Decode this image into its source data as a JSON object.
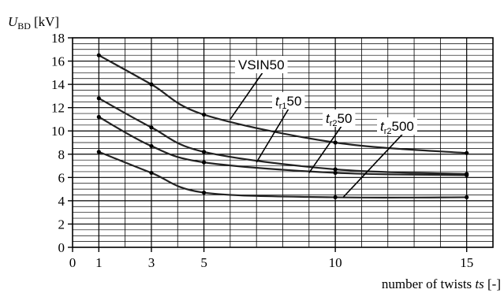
{
  "chart_data": {
    "type": "line",
    "ylabel": {
      "symbol": "U",
      "subscript": "BD",
      "unit": "[kV]"
    },
    "xlabel": {
      "prefix": "number of twists ",
      "var": "ts",
      "unit": " [-]"
    },
    "x_ticks": [
      "0",
      "1",
      "3",
      "5",
      "10",
      "15"
    ],
    "y_ticks": [
      "0",
      "2",
      "4",
      "6",
      "8",
      "10",
      "12",
      "14",
      "16",
      "18"
    ],
    "xlim": [
      0,
      16
    ],
    "ylim": [
      0,
      18
    ],
    "grid": true,
    "series": [
      {
        "name": "VSIN50",
        "label": {
          "main": "VSIN50",
          "sub": "",
          "tail": ""
        },
        "x": [
          1,
          3,
          5,
          10,
          15
        ],
        "y": [
          16.5,
          14.0,
          11.4,
          9.0,
          8.1
        ],
        "label_anchor": [
          6.0,
          11.0
        ]
      },
      {
        "name": "tr150",
        "label": {
          "main": "t",
          "sub": "r1",
          "tail": "50"
        },
        "x": [
          1,
          3,
          5,
          10,
          15
        ],
        "y": [
          12.8,
          10.3,
          8.2,
          6.7,
          6.3
        ],
        "label_anchor": [
          7.0,
          7.3
        ]
      },
      {
        "name": "tr250",
        "label": {
          "main": "t",
          "sub": "r2",
          "tail": "50"
        },
        "x": [
          1,
          3,
          5,
          10,
          15
        ],
        "y": [
          11.2,
          8.7,
          7.3,
          6.4,
          6.2
        ],
        "label_anchor": [
          9.0,
          6.4
        ]
      },
      {
        "name": "tr2500",
        "label": {
          "main": "t",
          "sub": "r2",
          "tail": "500"
        },
        "x": [
          1,
          3,
          5,
          10,
          15
        ],
        "y": [
          8.2,
          6.4,
          4.7,
          4.3,
          4.3
        ],
        "label_anchor": [
          10.3,
          4.3
        ]
      }
    ]
  }
}
